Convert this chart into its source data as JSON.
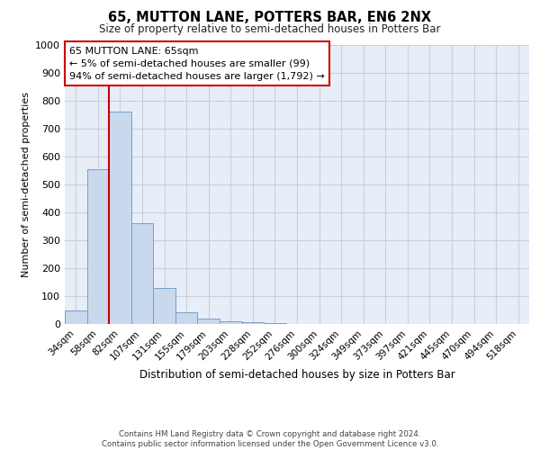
{
  "title": "65, MUTTON LANE, POTTERS BAR, EN6 2NX",
  "subtitle": "Size of property relative to semi-detached houses in Potters Bar",
  "xlabel": "Distribution of semi-detached houses by size in Potters Bar",
  "ylabel": "Number of semi-detached properties",
  "categories": [
    "34sqm",
    "58sqm",
    "82sqm",
    "107sqm",
    "131sqm",
    "155sqm",
    "179sqm",
    "203sqm",
    "228sqm",
    "252sqm",
    "276sqm",
    "300sqm",
    "324sqm",
    "349sqm",
    "373sqm",
    "397sqm",
    "421sqm",
    "445sqm",
    "470sqm",
    "494sqm",
    "518sqm"
  ],
  "values": [
    50,
    555,
    760,
    360,
    130,
    42,
    18,
    10,
    5,
    2,
    0,
    0,
    0,
    0,
    0,
    0,
    0,
    0,
    0,
    0,
    0
  ],
  "bar_color": "#c8d8ed",
  "bar_edge_color": "#7a9ec8",
  "background_color": "#e8eef8",
  "ylim": [
    0,
    1000
  ],
  "yticks": [
    0,
    100,
    200,
    300,
    400,
    500,
    600,
    700,
    800,
    900,
    1000
  ],
  "annotation_box_text": "65 MUTTON LANE: 65sqm\n← 5% of semi-detached houses are smaller (99)\n94% of semi-detached houses are larger (1,792) →",
  "vline_color": "#cc0000",
  "footer_line1": "Contains HM Land Registry data © Crown copyright and database right 2024.",
  "footer_line2": "Contains public sector information licensed under the Open Government Licence v3.0.",
  "grid_color": "#c8d0dc"
}
